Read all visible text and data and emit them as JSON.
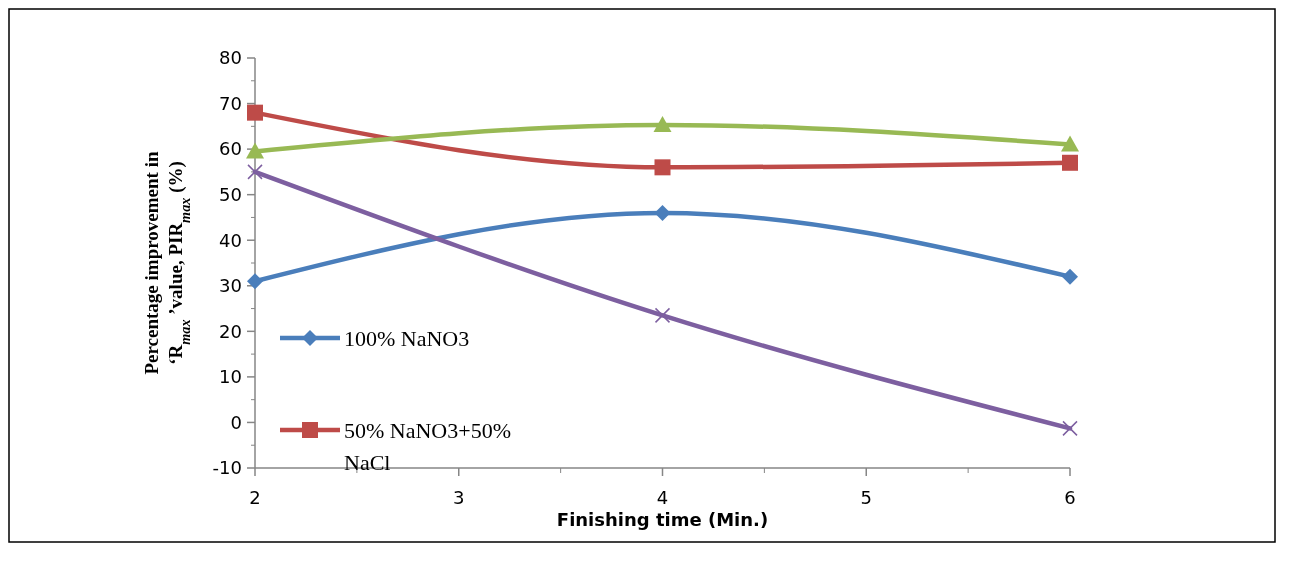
{
  "chart_data": {
    "type": "line",
    "xlabel": "Finishing time (Min.)",
    "ylabel": "Percentage improvement in\n‘R$_{max}$ ’value, PIR$_{max}$ (%)",
    "x": [
      2,
      4,
      6
    ],
    "xlim": [
      2,
      6
    ],
    "xticks": [
      2,
      3,
      4,
      5,
      6
    ],
    "ylim": [
      -10,
      80
    ],
    "yticks": [
      -10,
      0,
      10,
      20,
      30,
      40,
      50,
      60,
      70,
      80
    ],
    "legend": "left",
    "grid": false,
    "series": [
      {
        "name": "100% NaNO3",
        "color": "#4a7ebb",
        "marker": "diamond",
        "values": [
          31,
          46,
          32
        ]
      },
      {
        "name": "50% NaNO3+50% NaCl",
        "color": "#be4b48",
        "marker": "square",
        "values": [
          68,
          56,
          57
        ]
      },
      {
        "color": "#98b954",
        "marker": "triangle",
        "values": [
          59.5,
          65.3,
          61
        ]
      },
      {
        "color": "#7d5fa0",
        "marker": "cross",
        "values": [
          55,
          23.5,
          -1.3
        ]
      }
    ]
  }
}
